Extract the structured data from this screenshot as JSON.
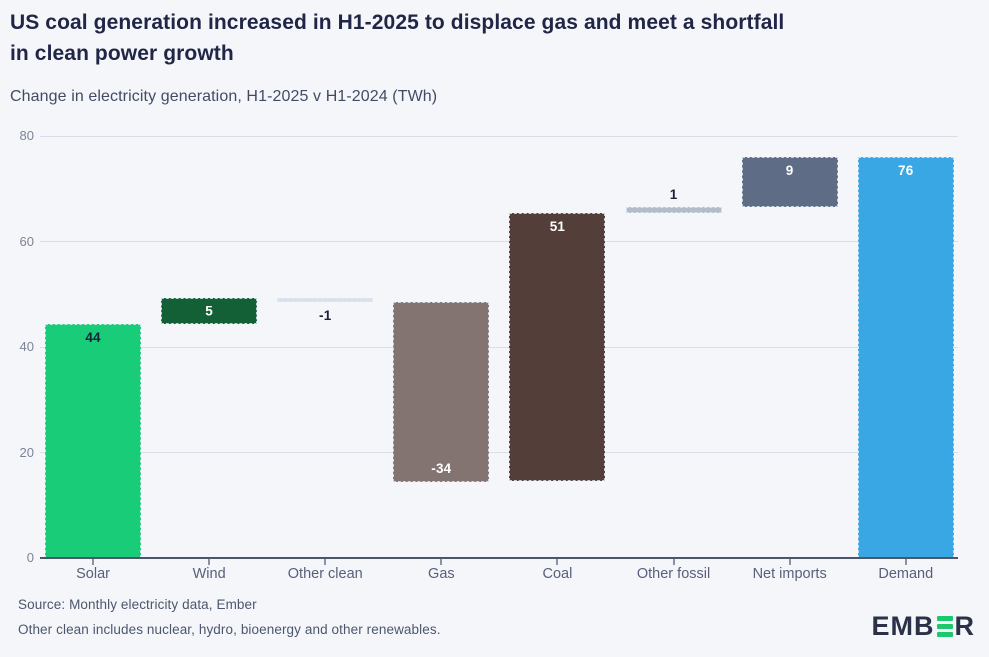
{
  "header": {
    "title_lines": [
      "US coal generation increased in H1-2025 to displace gas and meet a shortfall",
      "in clean power growth"
    ],
    "subtitle": "Change in electricity generation, H1-2025 v H1-2024 (TWh)"
  },
  "chart_data": {
    "type": "bar",
    "subtype": "waterfall",
    "title": "US coal generation increased in H1-2025 to displace gas and meet a shortfall in clean power growth",
    "subtitle": "Change in electricity generation, H1-2025 v H1-2024 (TWh)",
    "unit": "TWh",
    "categories": [
      "Solar",
      "Wind",
      "Other clean",
      "Gas",
      "Coal",
      "Other fossil",
      "Net imports",
      "Demand"
    ],
    "values": [
      44,
      5,
      -1,
      -34,
      51,
      1,
      9,
      76
    ],
    "ylim": [
      0,
      80
    ],
    "yticks": [
      0,
      20,
      40,
      60,
      80
    ],
    "grid": true,
    "legend": false,
    "bars": [
      {
        "category": "Solar",
        "label": "44",
        "start": 0,
        "end": 44.3,
        "color": "#19cc77",
        "label_color": "dark",
        "label_pos": "top-in"
      },
      {
        "category": "Wind",
        "label": "5",
        "start": 44.3,
        "end": 49.3,
        "color": "#135f36",
        "label_color": "light",
        "label_pos": "center"
      },
      {
        "category": "Other clean",
        "label": "-1",
        "start": 49.3,
        "end": 48.6,
        "color": "#d9e0eb",
        "label_color": "dark",
        "label_pos": "below"
      },
      {
        "category": "Gas",
        "label": "-34",
        "start": 48.6,
        "end": 14.5,
        "color": "#847471",
        "label_color": "light",
        "label_pos": "bottom-in"
      },
      {
        "category": "Coal",
        "label": "51",
        "start": 14.5,
        "end": 65.4,
        "color": "#533e39",
        "label_color": "light",
        "label_pos": "top-in"
      },
      {
        "category": "Other fossil",
        "label": "1",
        "start": 65.4,
        "end": 66.6,
        "color": "#b5bcc9",
        "label_color": "dark",
        "label_pos": "above"
      },
      {
        "category": "Net imports",
        "label": "9",
        "start": 66.6,
        "end": 76.0,
        "color": "#5f6c85",
        "label_color": "light",
        "label_pos": "top-in"
      },
      {
        "category": "Demand",
        "label": "76",
        "start": 0,
        "end": 76.0,
        "color": "#38a7e3",
        "label_color": "light",
        "label_pos": "top-in"
      }
    ]
  },
  "footer": {
    "source": "Source: Monthly electricity data, Ember",
    "note": "Other clean includes nuclear, hydro, bioenergy and other renewables.",
    "logo_prefix": "EMB",
    "logo_suffix": "R"
  },
  "colors": {
    "background": "#f4f6fa",
    "title": "#212647",
    "subtitle": "#414b64",
    "axis_tick_label": "#7d8498",
    "category_label": "#57607a",
    "gridline": "#d9dee8",
    "baseline": "#4d5569",
    "bar_label_dark": "#1b2139",
    "bar_label_light": "#ffffff",
    "logo_green": "#1dc96e",
    "logo_dark": "#2b3147"
  }
}
